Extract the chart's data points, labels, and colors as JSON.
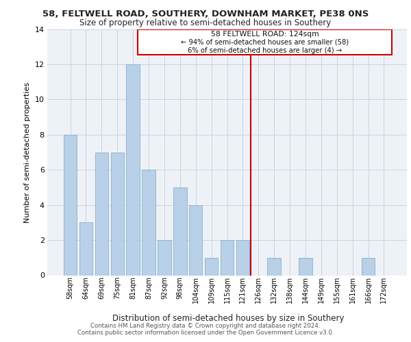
{
  "title1": "58, FELTWELL ROAD, SOUTHERY, DOWNHAM MARKET, PE38 0NS",
  "title2": "Size of property relative to semi-detached houses in Southery",
  "xlabel": "Distribution of semi-detached houses by size in Southery",
  "ylabel": "Number of semi-detached properties",
  "categories": [
    "58sqm",
    "64sqm",
    "69sqm",
    "75sqm",
    "81sqm",
    "87sqm",
    "92sqm",
    "98sqm",
    "104sqm",
    "109sqm",
    "115sqm",
    "121sqm",
    "126sqm",
    "132sqm",
    "138sqm",
    "144sqm",
    "149sqm",
    "155sqm",
    "161sqm",
    "166sqm",
    "172sqm"
  ],
  "values": [
    8,
    3,
    7,
    7,
    12,
    6,
    2,
    5,
    4,
    1,
    2,
    2,
    0,
    1,
    0,
    1,
    0,
    0,
    0,
    1,
    0
  ],
  "bar_color": "#b8d0e8",
  "bar_edge_color": "#8ab0cc",
  "vline_pos": 11.5,
  "property_label": "58 FELTWELL ROAD: 124sqm",
  "annotation_line1": "← 94% of semi-detached houses are smaller (58)",
  "annotation_line2": "6% of semi-detached houses are larger (4) →",
  "vline_color": "#cc0000",
  "box_color": "#cc0000",
  "ylim": [
    0,
    14
  ],
  "yticks": [
    0,
    2,
    4,
    6,
    8,
    10,
    12,
    14
  ],
  "footer1": "Contains HM Land Registry data © Crown copyright and database right 2024.",
  "footer2": "Contains public sector information licensed under the Open Government Licence v3.0.",
  "bg_color": "#eef2f7",
  "grid_color": "#c8d4e0"
}
